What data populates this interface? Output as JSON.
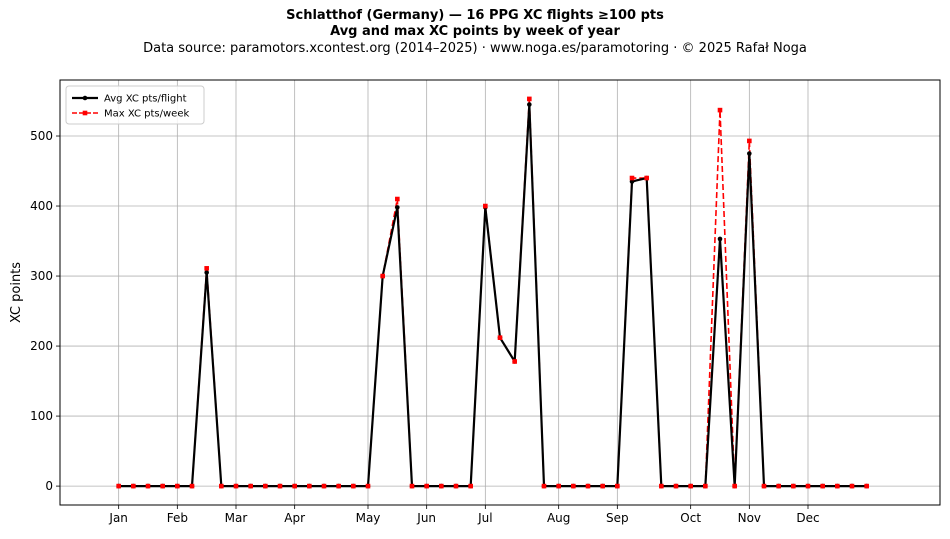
{
  "chart_data": {
    "type": "line",
    "title": "Schlatthof (Germany)  —  16 PPG XC flights ≥100 pts",
    "subtitle": "Avg and max XC points by week of year",
    "source": "Data source: paramotors.xcontest.org (2014–2025)  ·  www.noga.es/paramotoring  ·  © 2025 Rafał Noga",
    "xlabel": "",
    "ylabel": "XC points",
    "xlim": [
      -3,
      57
    ],
    "ylim": [
      -27,
      580
    ],
    "yticks": [
      0,
      100,
      200,
      300,
      400,
      500
    ],
    "xticks": [
      {
        "week": 1,
        "label": "Jan"
      },
      {
        "week": 5,
        "label": "Feb"
      },
      {
        "week": 9,
        "label": "Mar"
      },
      {
        "week": 13,
        "label": "Apr"
      },
      {
        "week": 18,
        "label": "May"
      },
      {
        "week": 22,
        "label": "Jun"
      },
      {
        "week": 26,
        "label": "Jul"
      },
      {
        "week": 31,
        "label": "Aug"
      },
      {
        "week": 35,
        "label": "Sep"
      },
      {
        "week": 40,
        "label": "Oct"
      },
      {
        "week": 44,
        "label": "Nov"
      },
      {
        "week": 48,
        "label": "Dec"
      }
    ],
    "grid": true,
    "legend_position": "top-left",
    "x": [
      1,
      2,
      3,
      4,
      5,
      6,
      7,
      8,
      9,
      10,
      11,
      12,
      13,
      14,
      15,
      16,
      17,
      18,
      19,
      20,
      21,
      22,
      23,
      24,
      25,
      26,
      27,
      28,
      29,
      30,
      31,
      32,
      33,
      34,
      35,
      36,
      37,
      38,
      39,
      40,
      41,
      42,
      43,
      44,
      45,
      46,
      47,
      48,
      49,
      50,
      51,
      52
    ],
    "series": [
      {
        "name": "Avg XC pts/flight",
        "color": "#000000",
        "style": "solid",
        "marker": "circle",
        "values": [
          0,
          0,
          0,
          0,
          0,
          0,
          305,
          0,
          0,
          0,
          0,
          0,
          0,
          0,
          0,
          0,
          0,
          0,
          300,
          398,
          0,
          0,
          0,
          0,
          0,
          398,
          212,
          178,
          545,
          0,
          0,
          0,
          0,
          0,
          0,
          435,
          440,
          0,
          0,
          0,
          0,
          353,
          0,
          475,
          0,
          0,
          0,
          0,
          0,
          0,
          0,
          0
        ]
      },
      {
        "name": "Max XC pts/week",
        "color": "#ff0000",
        "style": "dashed",
        "marker": "square",
        "values": [
          0,
          0,
          0,
          0,
          0,
          0,
          311,
          0,
          0,
          0,
          0,
          0,
          0,
          0,
          0,
          0,
          0,
          0,
          300,
          410,
          0,
          0,
          0,
          0,
          0,
          400,
          212,
          178,
          553,
          0,
          0,
          0,
          0,
          0,
          0,
          440,
          440,
          0,
          0,
          0,
          0,
          537,
          0,
          493,
          0,
          0,
          0,
          0,
          0,
          0,
          0,
          0
        ]
      }
    ]
  }
}
